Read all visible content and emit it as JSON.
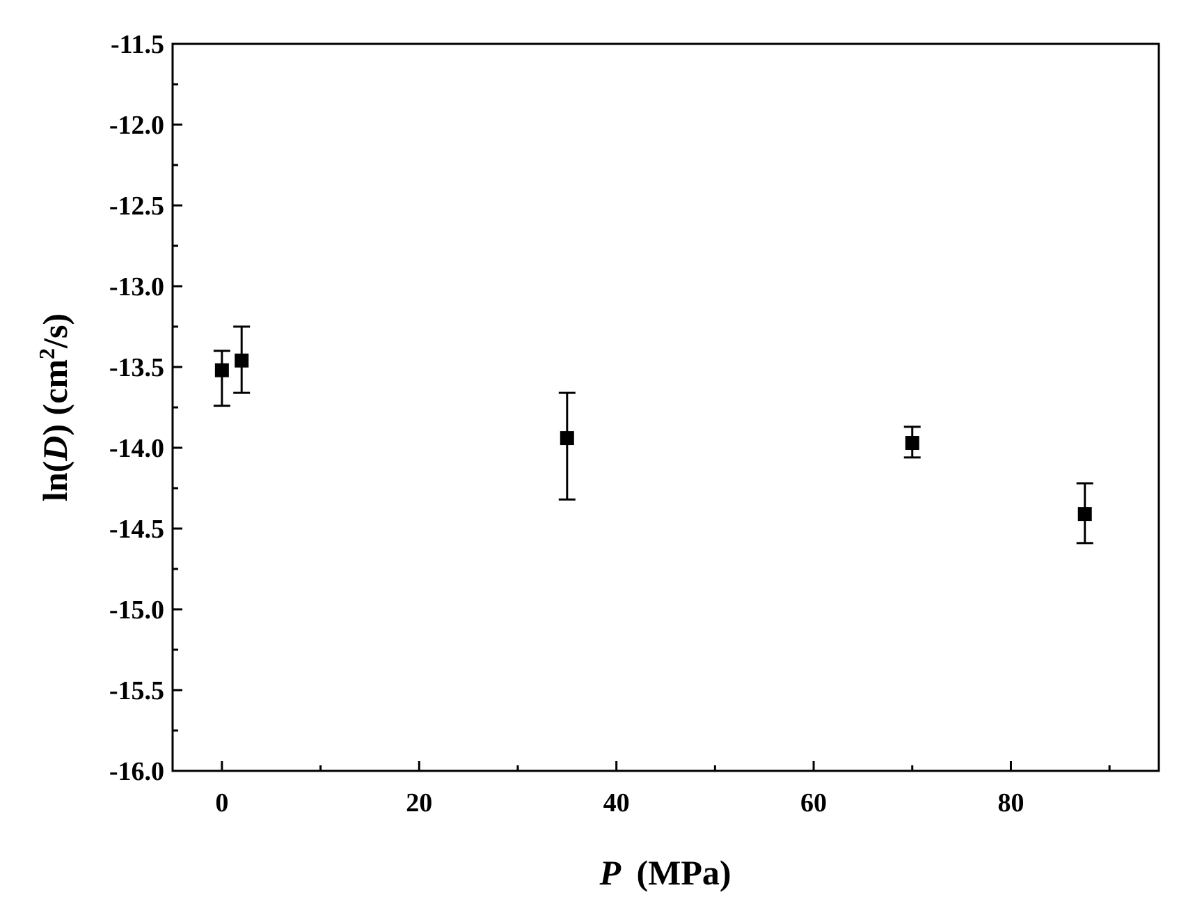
{
  "chart_data": {
    "type": "scatter",
    "title": "",
    "xlabel": {
      "symbol": "P",
      "unit": "(MPa)"
    },
    "ylabel": {
      "prefix": "ln(",
      "symbol": "D",
      "suffix": ") (cm",
      "superscript": "2",
      "unit_tail": "/s)"
    },
    "xlim": [
      -5,
      95
    ],
    "ylim": [
      -16.0,
      -11.5
    ],
    "x_ticks": [
      0,
      20,
      40,
      60,
      80
    ],
    "x_tick_labels": [
      "0",
      "20",
      "40",
      "60",
      "80"
    ],
    "x_minor_ticks": [
      10,
      30,
      50,
      70,
      90
    ],
    "y_ticks": [
      -16.0,
      -15.5,
      -15.0,
      -14.5,
      -14.0,
      -13.5,
      -13.0,
      -12.5,
      -12.0,
      -11.5
    ],
    "y_tick_labels": [
      "-16.0",
      "-15.5",
      "-15.0",
      "-14.5",
      "-14.0",
      "-13.5",
      "-13.0",
      "-12.5",
      "-12.0",
      "-11.5"
    ],
    "y_minor_ticks": [
      -15.75,
      -15.25,
      -14.75,
      -14.25,
      -13.75,
      -13.25,
      -12.75,
      -12.25,
      -11.75
    ],
    "grid": false,
    "series": [
      {
        "marker": "square",
        "color": "#000000",
        "points": [
          {
            "x": 0,
            "y": -13.52,
            "err_low": -13.74,
            "err_high": -13.4
          },
          {
            "x": 2,
            "y": -13.46,
            "err_low": -13.66,
            "err_high": -13.25
          },
          {
            "x": 35,
            "y": -13.94,
            "err_low": -14.32,
            "err_high": -13.66
          },
          {
            "x": 70,
            "y": -13.97,
            "err_low": -14.06,
            "err_high": -13.87
          },
          {
            "x": 87.5,
            "y": -14.41,
            "err_low": -14.59,
            "err_high": -14.22
          }
        ]
      }
    ]
  }
}
